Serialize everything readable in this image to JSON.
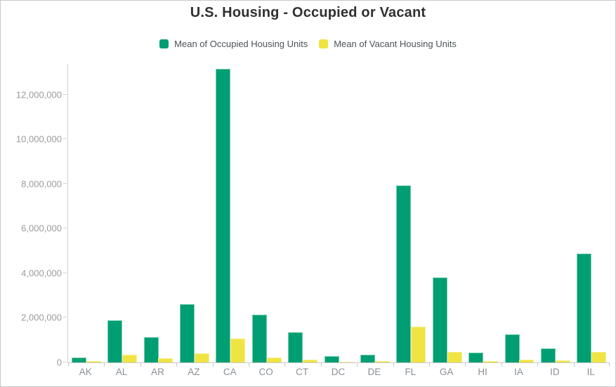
{
  "title": "U.S. Housing - Occupied or Vacant",
  "legend": {
    "items": [
      {
        "label": "Mean of Occupied Housing Units",
        "color": "#009e73"
      },
      {
        "label": "Mean of Vacant Housing Units",
        "color": "#f0e442"
      }
    ]
  },
  "chart_data": {
    "type": "bar",
    "title": "U.S. Housing - Occupied or Vacant",
    "categories": [
      "AK",
      "AL",
      "AR",
      "AZ",
      "CA",
      "CO",
      "CT",
      "DC",
      "DE",
      "FL",
      "GA",
      "HI",
      "IA",
      "ID",
      "IL"
    ],
    "series": [
      {
        "name": "Mean of Occupied Housing Units",
        "color": "#009e73",
        "values": [
          225000,
          1880000,
          1140000,
          2610000,
          13150000,
          2130000,
          1370000,
          270000,
          335000,
          7940000,
          3820000,
          445000,
          1260000,
          620000,
          4880000
        ]
      },
      {
        "name": "Mean of Vacant Housing Units",
        "color": "#f0e442",
        "values": [
          50000,
          360000,
          185000,
          400000,
          1080000,
          215000,
          120000,
          45000,
          55000,
          1610000,
          470000,
          75000,
          135000,
          90000,
          460000
        ]
      }
    ],
    "xlabel": "",
    "ylabel": "",
    "ylim": [
      0,
      13380000
    ],
    "yticks": [
      0,
      2000000,
      4000000,
      6000000,
      8000000,
      10000000,
      12000000
    ],
    "y_tick_format": "#,###",
    "grid": false,
    "legend_position": "top"
  }
}
